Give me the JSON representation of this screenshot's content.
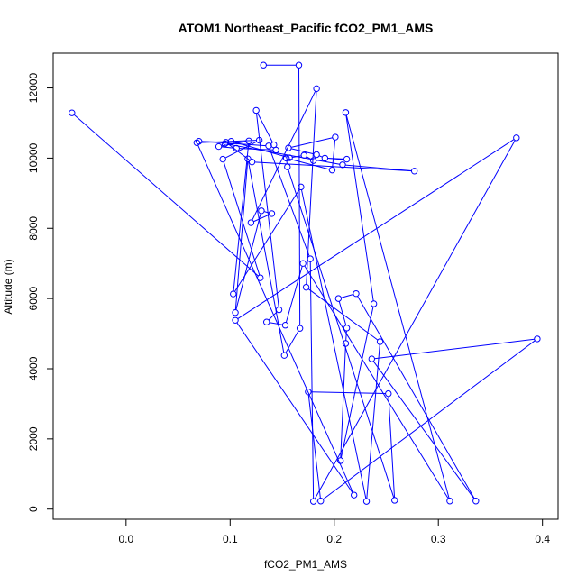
{
  "chart_data": {
    "type": "line",
    "title": "ATOM1 Northeast_Pacific fCO2_PM1_AMS",
    "xlabel": "fCO2_PM1_AMS",
    "ylabel": "Altitude (m)",
    "xlim": [
      -0.07,
      0.415
    ],
    "ylim": [
      -290,
      12990
    ],
    "xticks": [
      0.0,
      0.1,
      0.2,
      0.3,
      0.4
    ],
    "xtick_labels": [
      "0.0",
      "0.1",
      "0.2",
      "0.3",
      "0.4"
    ],
    "yticks": [
      0,
      2000,
      4000,
      6000,
      8000,
      10000,
      12000
    ],
    "ytick_labels": [
      "0",
      "2000",
      "4000",
      "6000",
      "8000",
      "10000",
      "12000"
    ],
    "series_color": "#0000ff",
    "marker": "open-circle",
    "series": [
      {
        "points": [
          [
            0.132,
            12650
          ],
          [
            0.166,
            12650
          ],
          [
            0.167,
            5150
          ],
          [
            0.152,
            4380
          ],
          [
            0.117,
            9980
          ],
          [
            0.105,
            5600
          ],
          [
            0.13,
            8500
          ],
          [
            0.14,
            8420
          ],
          [
            0.12,
            8160
          ],
          [
            0.183,
            11980
          ],
          [
            0.173,
            6320
          ],
          [
            0.244,
            4770
          ],
          [
            0.231,
            220
          ],
          [
            0.168,
            9180
          ],
          [
            0.103,
            6130
          ],
          [
            0.118,
            10490
          ],
          [
            0.089,
            10330
          ],
          [
            0.106,
            10280
          ],
          [
            0.144,
            10230
          ],
          [
            0.142,
            10380
          ],
          [
            0.125,
            11360
          ],
          [
            0.147,
            5680
          ],
          [
            0.135,
            5330
          ],
          [
            0.153,
            5240
          ],
          [
            0.17,
            7000
          ],
          [
            0.311,
            230
          ],
          [
            0.211,
            11300
          ],
          [
            0.238,
            5850
          ],
          [
            0.206,
            1380
          ],
          [
            0.211,
            4720
          ],
          [
            0.212,
            5160
          ],
          [
            0.204,
            6000
          ],
          [
            0.221,
            6140
          ],
          [
            0.336,
            230
          ],
          [
            0.236,
            4280
          ],
          [
            0.395,
            4850
          ],
          [
            0.187,
            230
          ],
          [
            0.175,
            3340
          ],
          [
            0.252,
            3290
          ],
          [
            0.258,
            250
          ],
          [
            0.155,
            9750
          ],
          [
            0.154,
            10000
          ],
          [
            0.198,
            9660
          ],
          [
            0.201,
            10600
          ],
          [
            0.156,
            10290
          ],
          [
            0.183,
            10100
          ],
          [
            0.191,
            10000
          ],
          [
            0.212,
            9970
          ],
          [
            0.18,
            9930
          ],
          [
            0.171,
            10080
          ],
          [
            0.157,
            10010
          ],
          [
            0.101,
            10480
          ],
          [
            0.095,
            10410
          ],
          [
            0.208,
            9810
          ],
          [
            0.277,
            9630
          ],
          [
            0.121,
            9890
          ],
          [
            0.096,
            10450
          ],
          [
            0.07,
            10480
          ],
          [
            0.137,
            10350
          ],
          [
            0.177,
            7130
          ],
          [
            0.18,
            220
          ],
          [
            0.375,
            10580
          ],
          [
            0.105,
            5380
          ],
          [
            0.219,
            400
          ],
          [
            0.068,
            10440
          ],
          [
            0.128,
            10510
          ],
          [
            0.093,
            9970
          ],
          [
            0.129,
            6590
          ],
          [
            -0.052,
            11290
          ]
        ]
      }
    ]
  }
}
